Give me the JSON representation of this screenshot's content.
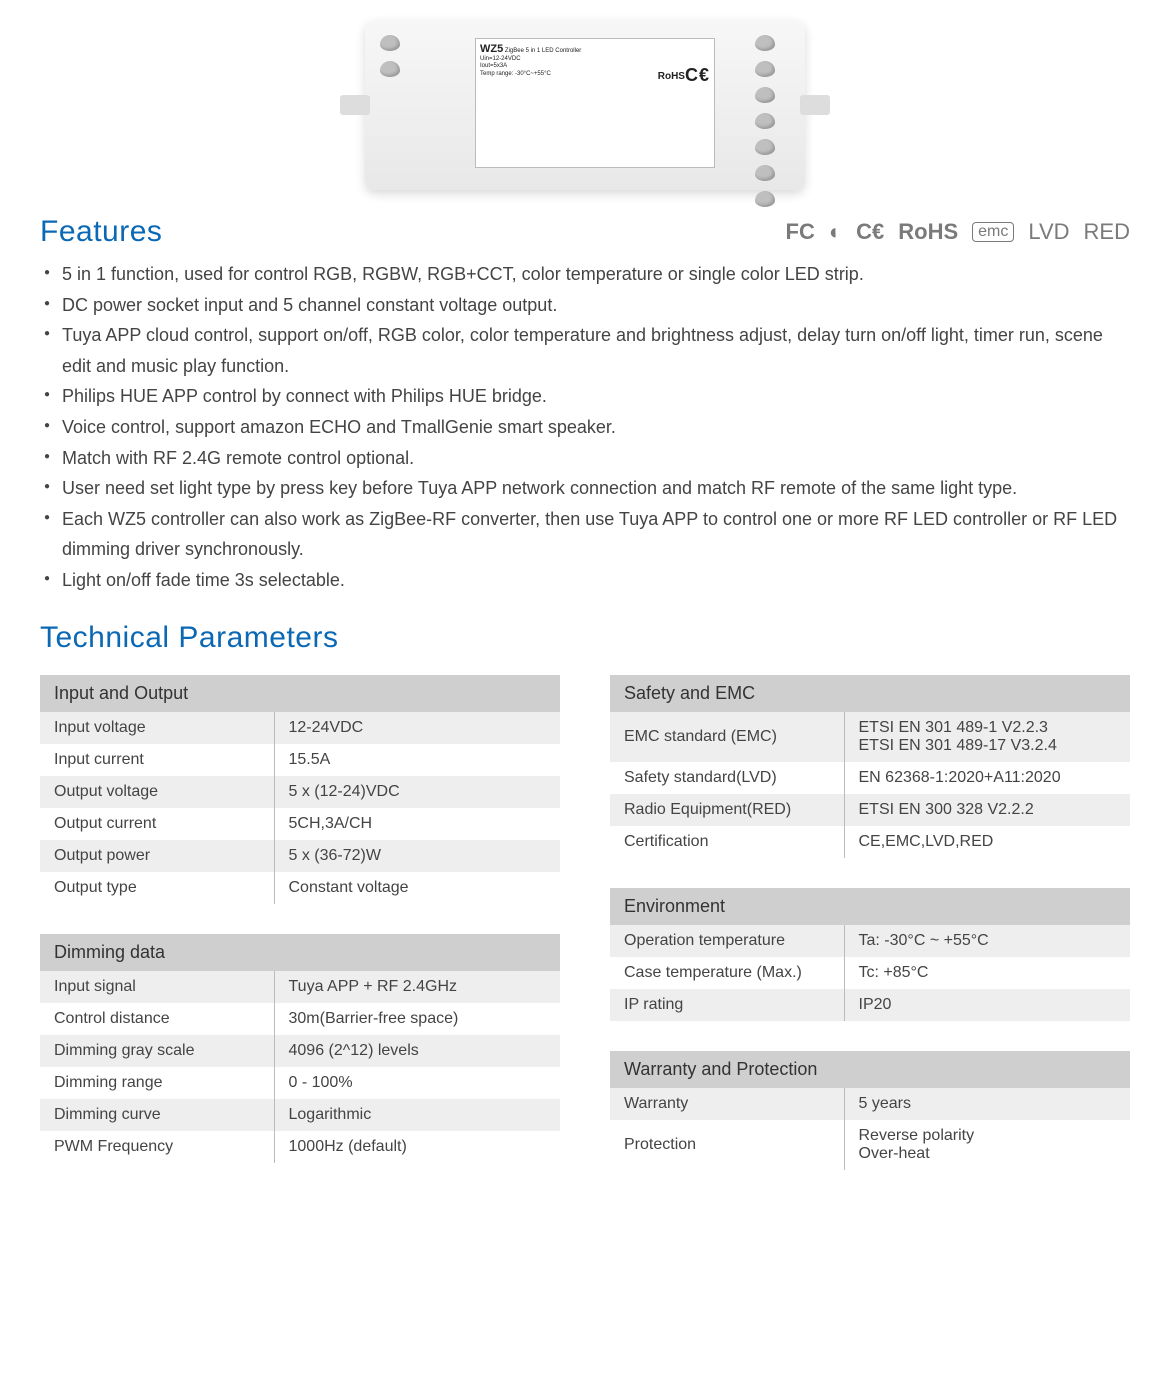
{
  "product": {
    "model": "WZ5",
    "subtitle": "ZigBee 5 in 1 LED Controller",
    "vin": "Uin=12-24VDC",
    "iout": "Iout=5x3A",
    "temp": "Temp range: -30°C~+55°C",
    "ce": "C€",
    "rohs": "RoHS"
  },
  "sections": {
    "features": "Features",
    "tech": "Technical Parameters"
  },
  "certs": [
    "FC",
    "◐",
    "C€",
    "RoHS",
    "emc",
    "LVD",
    "RED"
  ],
  "features": [
    "5 in 1 function, used for control RGB, RGBW, RGB+CCT, color temperature or single color LED strip.",
    "DC power socket input and 5 channel constant voltage output.",
    "Tuya APP cloud control, support on/off, RGB color, color temperature and brightness adjust, delay turn on/off light, timer run, scene edit and music play function.",
    "Philips HUE APP control by connect with Philips HUE bridge.",
    "Voice control, support amazon ECHO and TmallGenie smart speaker.",
    "Match with RF 2.4G remote control optional.",
    "User need set light type by press key before Tuya APP network connection and match RF remote of the same light type.",
    "Each WZ5 controller can also work as ZigBee-RF converter, then use Tuya APP to control one or more RF LED controller or RF LED dimming driver synchronously.",
    "Light on/off fade time 3s selectable."
  ],
  "tables": {
    "io": {
      "title": "Input and Output",
      "rows": [
        [
          "Input voltage",
          "12-24VDC"
        ],
        [
          "Input current",
          "15.5A"
        ],
        [
          "Output voltage",
          "5 x (12-24)VDC"
        ],
        [
          "Output current",
          "5CH,3A/CH"
        ],
        [
          "Output power",
          "5 x (36-72)W"
        ],
        [
          "Output type",
          "Constant voltage"
        ]
      ]
    },
    "dimming": {
      "title": "Dimming data",
      "rows": [
        [
          "Input signal",
          "Tuya APP + RF 2.4GHz"
        ],
        [
          "Control distance",
          "30m(Barrier-free space)"
        ],
        [
          "Dimming gray scale",
          "4096 (2^12) levels"
        ],
        [
          "Dimming range",
          "0 - 100%"
        ],
        [
          "Dimming curve",
          "Logarithmic"
        ],
        [
          "PWM Frequency",
          "1000Hz (default)"
        ]
      ]
    },
    "safety": {
      "title": "Safety and EMC",
      "rows": [
        [
          "EMC standard (EMC)",
          "ETSI EN 301 489-1 V2.2.3\nETSI EN 301 489-17 V3.2.4"
        ],
        [
          "Safety standard(LVD)",
          "EN 62368-1:2020+A11:2020"
        ],
        [
          "Radio Equipment(RED)",
          "ETSI EN 300 328 V2.2.2"
        ],
        [
          "Certification",
          "CE,EMC,LVD,RED"
        ]
      ]
    },
    "env": {
      "title": "Environment",
      "rows": [
        [
          "Operation temperature",
          "Ta: -30°C ~ +55°C"
        ],
        [
          "Case temperature (Max.)",
          "Tc: +85°C"
        ],
        [
          "IP rating",
          "IP20"
        ]
      ]
    },
    "warranty": {
      "title": "Warranty and Protection",
      "rows": [
        [
          "Warranty",
          "5 years"
        ],
        [
          "Protection",
          "Reverse polarity\nOver-heat"
        ]
      ]
    }
  }
}
